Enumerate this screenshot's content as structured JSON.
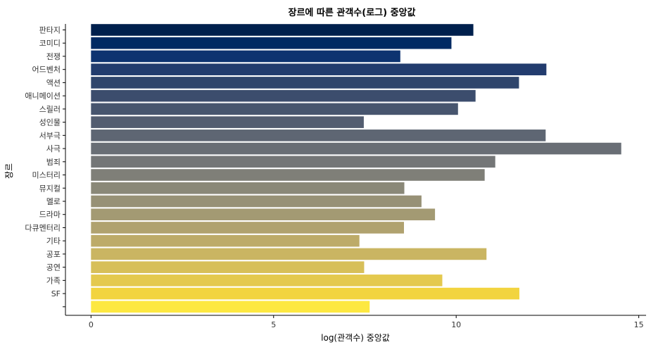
{
  "chart_data": {
    "type": "bar",
    "orientation": "horizontal",
    "title": "장르에 따른 관객수(로그) 중앙값",
    "xlabel": "log(관객수) 중앙값",
    "ylabel": "장르",
    "xlim": [
      -0.7,
      15.2
    ],
    "xticks": [
      0,
      5,
      10,
      15
    ],
    "xtick_labels": [
      "0",
      "5",
      "10",
      "15"
    ],
    "grid": false,
    "legend": "none",
    "categories": [
      "판타지",
      "코미디",
      "전쟁",
      "어드벤처",
      "액션",
      "애니메이션",
      "스릴러",
      "성인물",
      "서부극",
      "사극",
      "범죄",
      "미스터리",
      "뮤지컬",
      "멜로",
      "드라마",
      "다큐멘터리",
      "기타",
      "공포",
      "공연",
      "가족",
      "SF",
      ""
    ],
    "values": [
      10.47,
      9.87,
      8.47,
      12.47,
      11.72,
      10.53,
      10.05,
      7.47,
      12.45,
      14.52,
      11.07,
      10.78,
      8.58,
      9.05,
      9.42,
      8.57,
      7.35,
      10.83,
      7.48,
      9.62,
      11.73,
      7.63
    ],
    "colors": [
      "#00204d",
      "#002a63",
      "#0d3370",
      "#223c6e",
      "#2f456c",
      "#3c4d6d",
      "#47556e",
      "#535d70",
      "#5e6673",
      "#696e75",
      "#747677",
      "#7f7f78",
      "#8a8878",
      "#979176",
      "#a39a73",
      "#b0a26f",
      "#bdab69",
      "#cab562",
      "#d7bf59",
      "#e4c94e",
      "#f2d43f",
      "#fde841"
    ]
  }
}
